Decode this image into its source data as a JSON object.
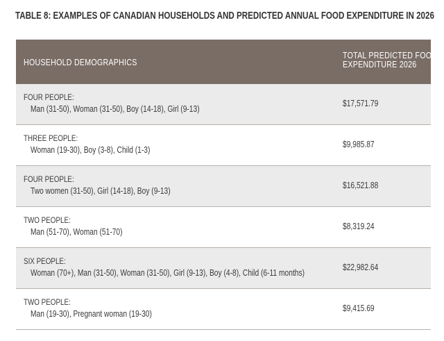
{
  "title": "TABLE 8: EXAMPLES OF CANADIAN HOUSEHOLDS AND PREDICTED ANNUAL FOOD EXPENDITURE IN 2026",
  "header": {
    "demographics": "HOUSEHOLD DEMOGRAPHICS",
    "total_line1": "TOTAL PREDICTED FOOD",
    "total_line2": "EXPENDITURE 2026"
  },
  "rows": [
    {
      "title": "FOUR PEOPLE:",
      "members": "Man (31-50), Woman (31-50), Boy (14-18), Girl (9-13)",
      "amount": "$17,571.79"
    },
    {
      "title": "THREE PEOPLE:",
      "members": "Woman (19-30), Boy (3-8), Child (1-3)",
      "amount": "$9,985.87"
    },
    {
      "title": "FOUR PEOPLE:",
      "members": "Two women (31-50), Girl (14-18), Boy (9-13)",
      "amount": "$16,521.88"
    },
    {
      "title": "TWO PEOPLE:",
      "members": "Man (51-70), Woman (51-70)",
      "amount": "$8,319.24"
    },
    {
      "title": "SIX PEOPLE:",
      "members": "Woman (70+), Man (31-50), Woman (31-50), Girl (9-13), Boy (4-8), Child (6-11 months)",
      "amount": "$22,982.64"
    },
    {
      "title": "TWO PEOPLE:",
      "members": "Man (19-30), Pregnant woman (19-30)",
      "amount": "$9,415.69"
    }
  ],
  "colors": {
    "header_bg": "#7a6d66",
    "row_shaded": "#ebebeb",
    "row_border": "#b8b0aa"
  }
}
